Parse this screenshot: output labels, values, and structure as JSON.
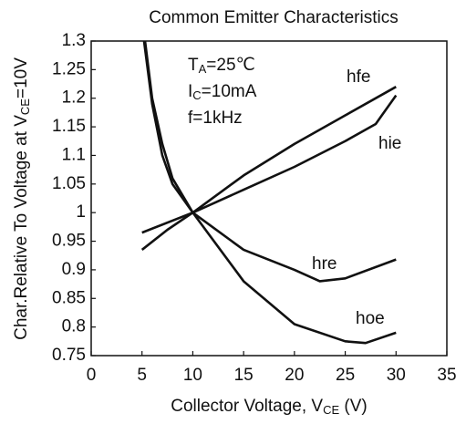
{
  "chart_data": {
    "type": "line",
    "title": "Common Emitter Characteristics",
    "ylabel": {
      "main": "Char.Relative To Voltage at V",
      "sub": "CE",
      "tail": "=10V"
    },
    "xlabel": {
      "main": "Collector Voltage, V",
      "sub": "CE",
      "tail": " (V)"
    },
    "annotations": [
      {
        "main": "T",
        "sub": "A",
        "tail": "=25℃"
      },
      {
        "main": "I",
        "sub": "C",
        "tail": "=10mA"
      },
      {
        "main": "f=1kHz"
      }
    ],
    "xlim": [
      0,
      35
    ],
    "xticks": [
      0,
      5,
      10,
      15,
      20,
      25,
      30,
      35
    ],
    "ylim": [
      0.75,
      1.3
    ],
    "yticks": [
      0.75,
      0.8,
      0.85,
      0.9,
      0.95,
      1,
      1.05,
      1.1,
      1.15,
      1.2,
      1.25,
      1.3
    ],
    "grid": false,
    "series": [
      {
        "name": "hfe",
        "color": "#111111",
        "x": [
          5,
          7.5,
          10,
          15,
          20,
          25,
          30
        ],
        "values": [
          0.935,
          0.97,
          1.0,
          1.065,
          1.12,
          1.17,
          1.22
        ]
      },
      {
        "name": "hie",
        "color": "#111111",
        "x": [
          5,
          10,
          15,
          20,
          25,
          28,
          30
        ],
        "values": [
          0.965,
          1.0,
          1.04,
          1.08,
          1.125,
          1.155,
          1.205
        ]
      },
      {
        "name": "hre",
        "color": "#111111",
        "x": [
          5.3,
          6,
          7,
          8,
          10,
          15,
          20,
          22.5,
          25,
          30
        ],
        "values": [
          1.3,
          1.2,
          1.12,
          1.06,
          1.0,
          0.935,
          0.9,
          0.88,
          0.885,
          0.918
        ]
      },
      {
        "name": "hoe",
        "color": "#111111",
        "x": [
          5.2,
          6,
          7,
          8,
          10,
          15,
          20,
          25,
          27,
          30
        ],
        "values": [
          1.3,
          1.19,
          1.1,
          1.05,
          1.0,
          0.88,
          0.805,
          0.775,
          0.772,
          0.79
        ]
      }
    ]
  }
}
